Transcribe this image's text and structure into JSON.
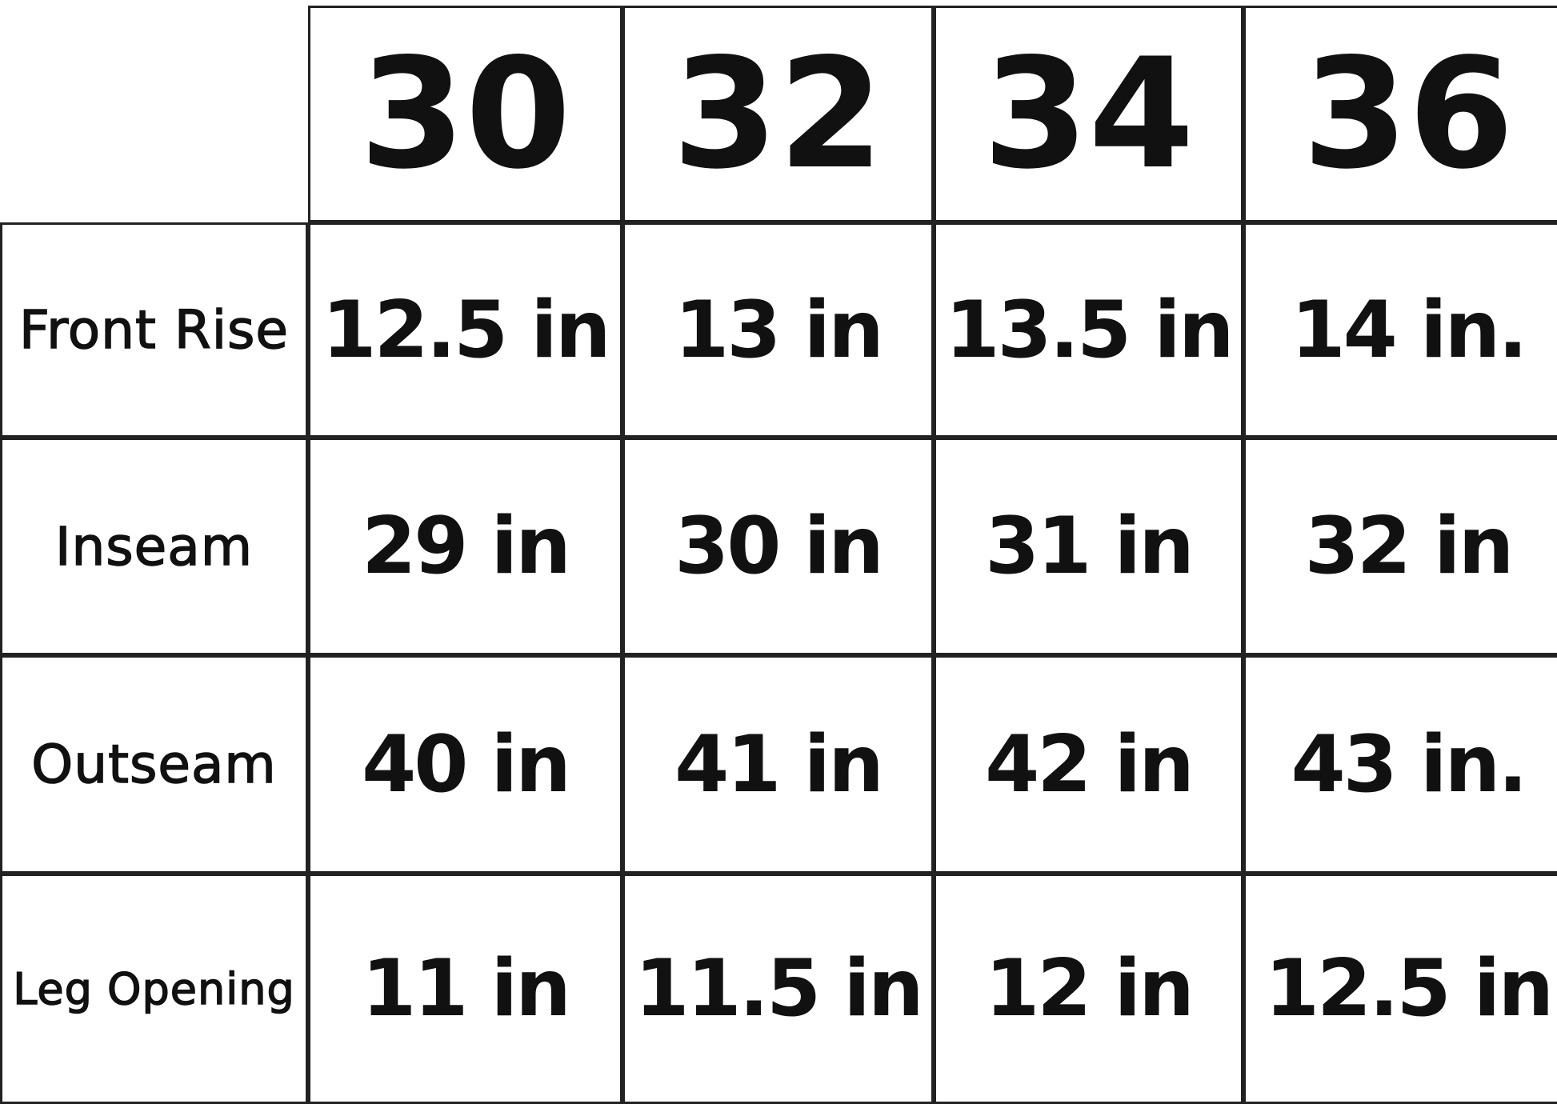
{
  "table": {
    "columns": [
      "30",
      "32",
      "34",
      "36"
    ],
    "rows": [
      {
        "label": "Front Rise",
        "cells": [
          "12.5 in",
          "13 in",
          "13.5 in",
          "14 in."
        ]
      },
      {
        "label": "Inseam",
        "cells": [
          "29 in",
          "30 in",
          "31 in",
          "32 in"
        ]
      },
      {
        "label": "Outseam",
        "cells": [
          "40 in",
          "41 in",
          "42 in",
          "43 in."
        ]
      },
      {
        "label": "Leg Opening",
        "cells": [
          "11 in",
          "11.5 in",
          "12 in",
          "12.5 in"
        ]
      }
    ]
  }
}
